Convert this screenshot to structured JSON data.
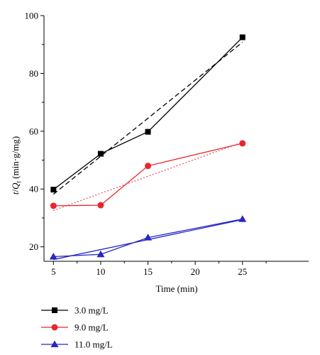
{
  "chart_data": {
    "type": "line",
    "xlabel": "Time (min)",
    "ylabel": "t/Q_t (min·g/mg)",
    "xlim": [
      4,
      32
    ],
    "ylim": [
      15,
      100
    ],
    "x_ticks": [
      5,
      10,
      15,
      20,
      25
    ],
    "y_ticks": [
      20,
      40,
      60,
      80,
      100
    ],
    "x": [
      5,
      10,
      15,
      25
    ],
    "legend_position": "below",
    "series": [
      {
        "name": "3.0 mg/L",
        "color": "#000000",
        "marker": "square",
        "values": [
          39.8,
          52.2,
          59.8,
          92.5
        ],
        "fit": {
          "y_start": 38.2,
          "y_end": 90.8,
          "style": "dashed"
        }
      },
      {
        "name": "9.0 mg/L",
        "color": "#e8262d",
        "marker": "circle",
        "values": [
          34.2,
          34.4,
          48.0,
          55.8
        ],
        "fit": {
          "y_start": 32.6,
          "y_end": 56.2,
          "style": "dotted"
        }
      },
      {
        "name": "11.0 mg/L",
        "color": "#2727c8",
        "marker": "triangle",
        "values": [
          16.6,
          17.4,
          23.2,
          29.6
        ],
        "fit": {
          "y_start": 15.6,
          "y_end": 29.4,
          "style": "solid"
        }
      }
    ]
  }
}
